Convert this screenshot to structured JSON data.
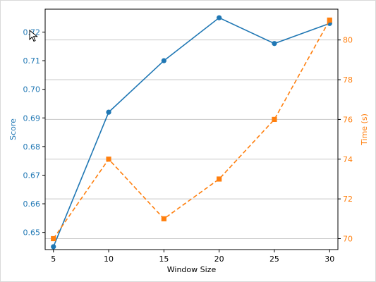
{
  "chart_data": {
    "type": "line",
    "x": [
      5,
      10,
      15,
      20,
      25,
      30
    ],
    "xlabel": "Window Size",
    "xlim": [
      4.25,
      30.75
    ],
    "xticks": [
      5,
      10,
      15,
      20,
      25,
      30
    ],
    "series": [
      {
        "values": [
          0.645,
          0.692,
          0.71,
          0.725,
          0.716,
          0.723
        ],
        "axis": "left",
        "color": "#1f77b4",
        "style": "solid",
        "marker": "circle"
      },
      {
        "values": [
          70,
          74,
          71,
          73,
          76,
          81
        ],
        "axis": "right",
        "color": "#ff7f0e",
        "style": "dashed",
        "marker": "square"
      }
    ],
    "left_axis": {
      "label": "Score",
      "color": "#1f77b4",
      "lim": [
        0.644,
        0.728
      ],
      "ticks": [
        0.65,
        0.66,
        0.67,
        0.68,
        0.69,
        0.7,
        0.71,
        0.72
      ],
      "tick_labels": [
        "0.65",
        "0.66",
        "0.67",
        "0.68",
        "0.69",
        "0.70",
        "0.71",
        "0.72"
      ]
    },
    "right_axis": {
      "label": "Time (s)",
      "color": "#ff7f0e",
      "lim": [
        69.45,
        81.55
      ],
      "ticks": [
        70,
        72,
        74,
        76,
        78,
        80
      ],
      "tick_labels": [
        "70",
        "72",
        "74",
        "76",
        "78",
        "80"
      ]
    },
    "grid": "horizontal (right axis)",
    "legend": "none"
  },
  "overlay": {
    "cursor_icon": "mouse-pointer-icon"
  }
}
